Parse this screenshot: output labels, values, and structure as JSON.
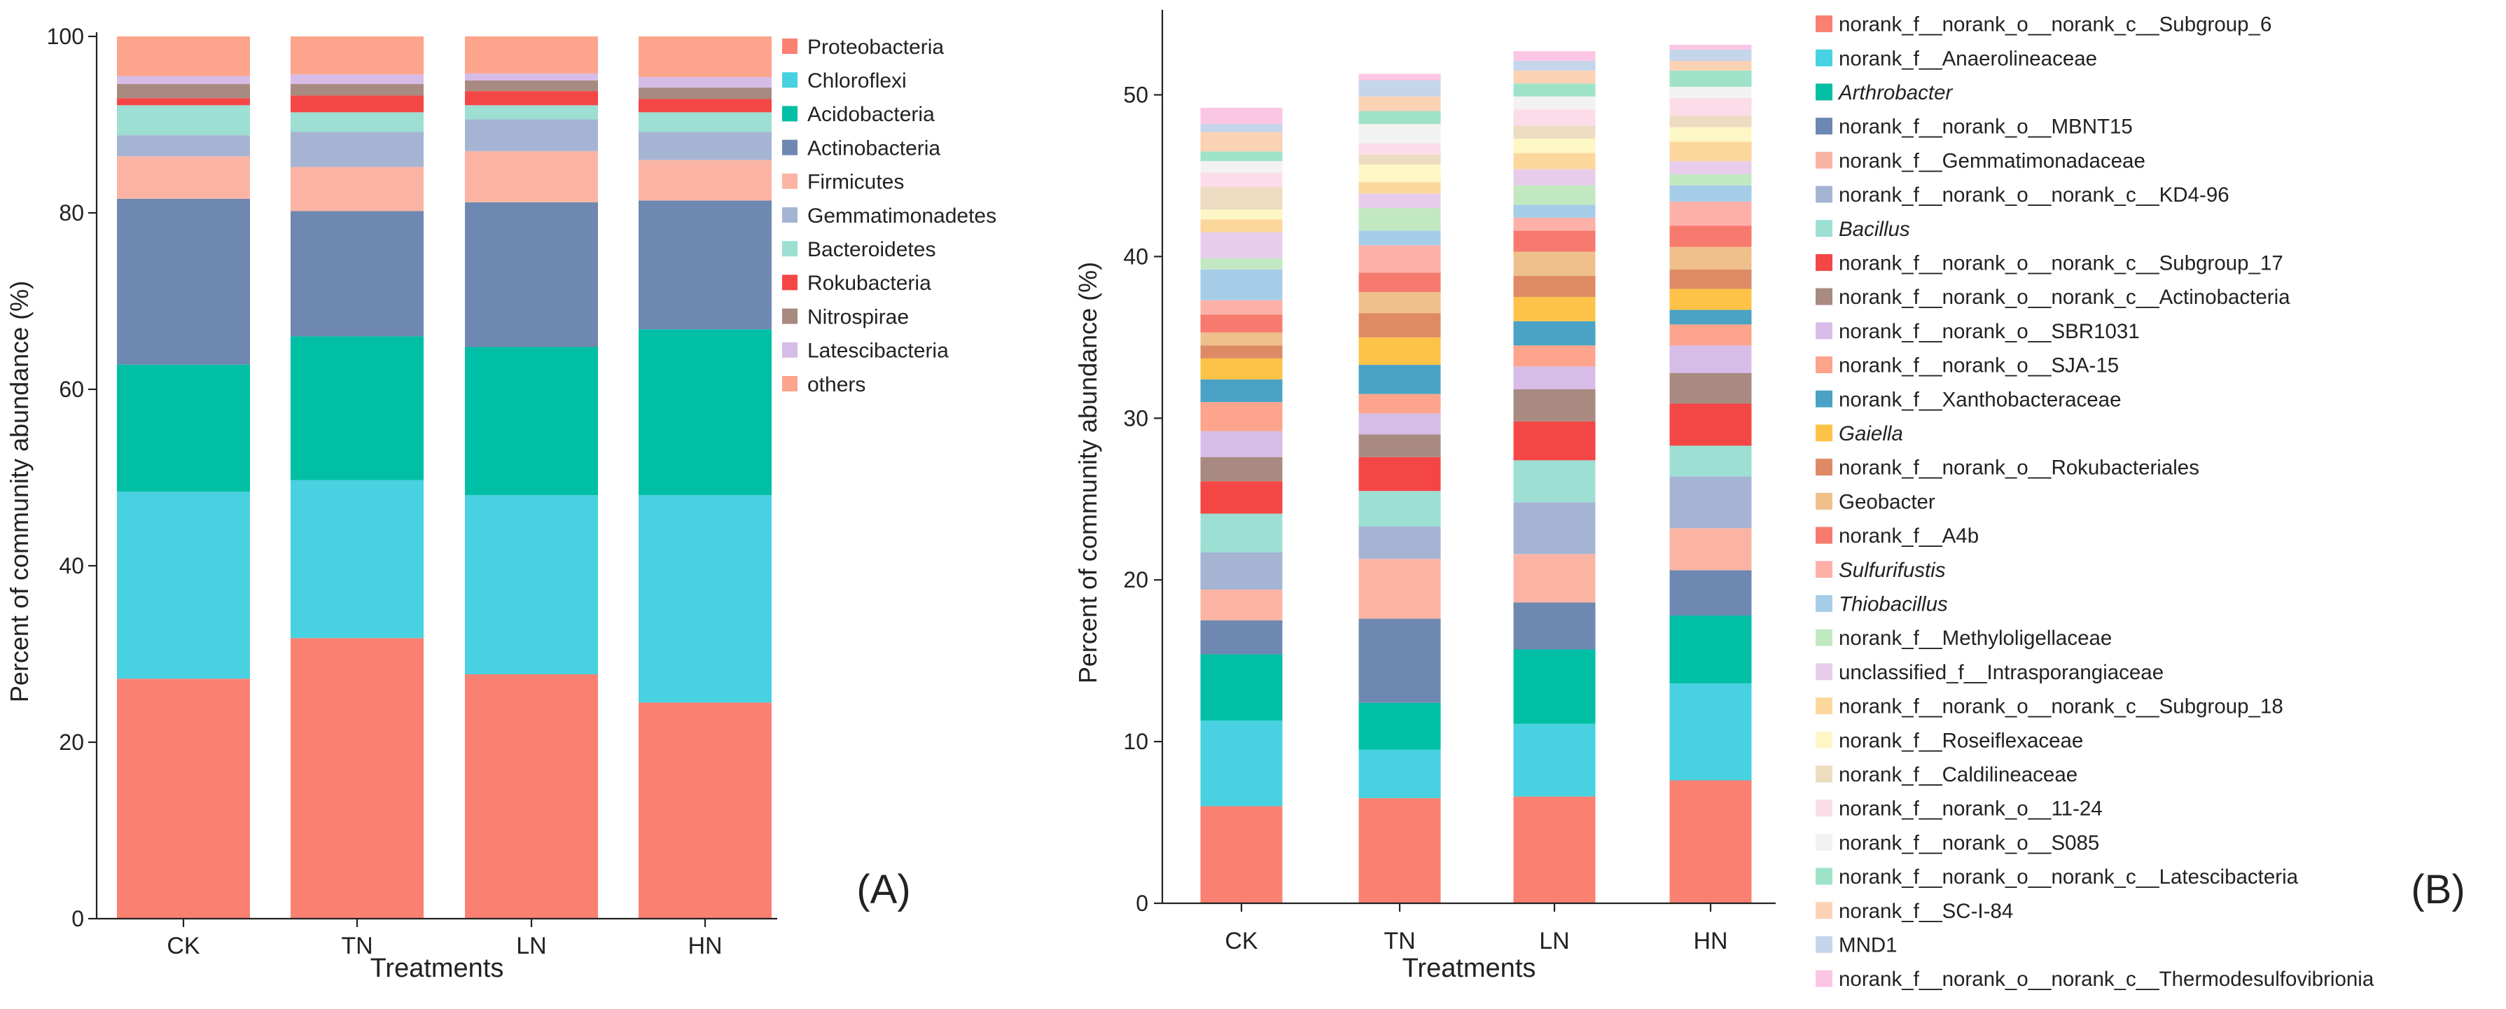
{
  "chart_data": [
    {
      "type": "stacked-bar",
      "panel_label": "(A)",
      "title": "",
      "xlabel": "Treatments",
      "ylabel": "Percent of community abundance (%)",
      "ylim": [
        0,
        100
      ],
      "yticks": [
        0,
        20,
        40,
        60,
        80,
        100
      ],
      "categories": [
        "CK",
        "TN",
        "LN",
        "HN"
      ],
      "series": [
        {
          "name": "Proteobacteria",
          "color": "#FA8072",
          "values": [
            27.2,
            31.8,
            27.7,
            24.5
          ]
        },
        {
          "name": "Chloroflexi",
          "color": "#48D1E0",
          "values": [
            21.2,
            17.9,
            20.3,
            23.5
          ]
        },
        {
          "name": "Acidobacteria",
          "color": "#00BFA5",
          "values": [
            14.4,
            16.3,
            16.8,
            18.8
          ]
        },
        {
          "name": "Actinobacteria",
          "color": "#6E88B2",
          "values": [
            18.8,
            14.2,
            16.4,
            14.6
          ]
        },
        {
          "name": "Firmicutes",
          "color": "#FBB4A4",
          "values": [
            4.8,
            5.0,
            5.8,
            4.6
          ]
        },
        {
          "name": "Gemmatimonadetes",
          "color": "#A6B4D4",
          "values": [
            2.4,
            4.0,
            3.6,
            3.2
          ]
        },
        {
          "name": "Bacteroidetes",
          "color": "#9DDFD3",
          "values": [
            3.4,
            2.2,
            1.6,
            2.2
          ]
        },
        {
          "name": "Rokubacteria",
          "color": "#F54646",
          "values": [
            0.8,
            1.9,
            1.6,
            1.5
          ]
        },
        {
          "name": "Nitrospirae",
          "color": "#A88A80",
          "values": [
            1.6,
            1.3,
            1.2,
            1.3
          ]
        },
        {
          "name": "Latescibacteria",
          "color": "#D7BCE8",
          "values": [
            0.9,
            1.1,
            0.8,
            1.2
          ]
        },
        {
          "name": "others",
          "color": "#FCA48C",
          "values": [
            4.5,
            4.3,
            4.2,
            4.6
          ]
        }
      ]
    },
    {
      "type": "stacked-bar",
      "panel_label": "(B)",
      "title": "",
      "xlabel": "Treatments",
      "ylabel": "Percent of community abundance (%)",
      "ylim": [
        0,
        55
      ],
      "yticks": [
        0,
        10,
        20,
        30,
        40,
        50
      ],
      "categories": [
        "CK",
        "TN",
        "LN",
        "HN"
      ],
      "series": [
        {
          "name": "norank_f__norank_o__norank_c__Subgroup_6",
          "italic": false,
          "color": "#FA8072",
          "values": [
            6.0,
            6.5,
            6.6,
            7.6
          ]
        },
        {
          "name": "norank_f__Anaerolineaceae",
          "italic": false,
          "color": "#48D1E0",
          "values": [
            5.3,
            3.0,
            4.5,
            6.0
          ]
        },
        {
          "name": "Arthrobacter",
          "italic": true,
          "color": "#00BFA5",
          "values": [
            4.1,
            2.9,
            4.6,
            4.2
          ]
        },
        {
          "name": "norank_f__norank_o__MBNT15",
          "italic": false,
          "color": "#6E88B2",
          "values": [
            2.1,
            5.2,
            2.9,
            2.8
          ]
        },
        {
          "name": "norank_f__Gemmatimonadaceae",
          "italic": false,
          "color": "#FBB4A4",
          "values": [
            1.9,
            3.7,
            3.0,
            2.6
          ]
        },
        {
          "name": "norank_f__norank_o__norank_c__KD4-96",
          "italic": false,
          "color": "#A6B4D4",
          "values": [
            2.3,
            2.0,
            3.2,
            3.2
          ]
        },
        {
          "name": "Bacillus",
          "italic": true,
          "color": "#9DDFD3",
          "values": [
            2.4,
            2.2,
            2.6,
            1.9
          ]
        },
        {
          "name": "norank_f__norank_o__norank_c__Subgroup_17",
          "italic": false,
          "color": "#F54646",
          "values": [
            2.0,
            2.1,
            2.4,
            2.6
          ]
        },
        {
          "name": "norank_f__norank_o__norank_c__Actinobacteria",
          "italic": false,
          "color": "#A88A80",
          "values": [
            1.5,
            1.4,
            2.0,
            1.9
          ]
        },
        {
          "name": "norank_f__norank_o__SBR1031",
          "italic": false,
          "color": "#D7BCE8",
          "values": [
            1.6,
            1.3,
            1.4,
            1.7
          ]
        },
        {
          "name": "norank_f__norank_o__SJA-15",
          "italic": false,
          "color": "#FCA48C",
          "values": [
            1.8,
            1.2,
            1.3,
            1.3
          ]
        },
        {
          "name": "norank_f__Xanthobacteraceae",
          "italic": false,
          "color": "#4AA3C4",
          "values": [
            1.4,
            1.8,
            1.5,
            0.9
          ]
        },
        {
          "name": "Gaiella",
          "italic": true,
          "color": "#FDC248",
          "values": [
            1.3,
            1.7,
            1.5,
            1.3
          ]
        },
        {
          "name": "norank_f__norank_o__Rokubacteriales",
          "italic": false,
          "color": "#DE8A64",
          "values": [
            0.8,
            1.5,
            1.3,
            1.2
          ]
        },
        {
          "name": "Geobacter",
          "italic": false,
          "color": "#EFC08C",
          "values": [
            0.8,
            1.3,
            1.5,
            1.4
          ]
        },
        {
          "name": "norank_f__A4b",
          "italic": false,
          "color": "#F77A6E",
          "values": [
            1.1,
            1.2,
            1.3,
            1.3
          ]
        },
        {
          "name": "Sulfurifustis",
          "italic": true,
          "color": "#FDB0A8",
          "values": [
            0.9,
            1.7,
            0.8,
            1.5
          ]
        },
        {
          "name": "Thiobacillus",
          "italic": true,
          "color": "#A6CDE8",
          "values": [
            1.9,
            0.9,
            0.8,
            1.0
          ]
        },
        {
          "name": "norank_f__Methyloligellaceae",
          "italic": false,
          "color": "#C2E8C2",
          "values": [
            0.7,
            1.4,
            1.2,
            0.7
          ]
        },
        {
          "name": "unclassified_f__Intrasporangiaceae",
          "italic": false,
          "color": "#E8CCEC",
          "values": [
            1.6,
            0.9,
            1.0,
            0.8
          ]
        },
        {
          "name": "norank_f__norank_o__norank_c__Subgroup_18",
          "italic": false,
          "color": "#FCD79C",
          "values": [
            0.8,
            0.7,
            1.0,
            1.2
          ]
        },
        {
          "name": "norank_f__Roseiflexaceae",
          "italic": false,
          "color": "#FCF7C4",
          "values": [
            0.6,
            1.1,
            0.9,
            0.9
          ]
        },
        {
          "name": "norank_f__Caldilineaceae",
          "italic": false,
          "color": "#EDDCC2",
          "values": [
            1.4,
            0.6,
            0.8,
            0.7
          ]
        },
        {
          "name": "norank_f__norank_o__11-24",
          "italic": false,
          "color": "#FBDCE8",
          "values": [
            0.9,
            0.7,
            1.0,
            1.1
          ]
        },
        {
          "name": "norank_f__norank_o__S085",
          "italic": false,
          "color": "#F2F2F2",
          "values": [
            0.7,
            1.2,
            0.8,
            0.7
          ]
        },
        {
          "name": "norank_f__norank_o__norank_c__Latescibacteria",
          "italic": false,
          "color": "#9EE3C8",
          "values": [
            0.6,
            0.8,
            0.8,
            1.0
          ]
        },
        {
          "name": "norank_f__SC-I-84",
          "italic": false,
          "color": "#FCD2B4",
          "values": [
            1.2,
            0.9,
            0.8,
            0.6
          ]
        },
        {
          "name": "MND1",
          "italic": false,
          "color": "#C5D5EA",
          "values": [
            0.5,
            1.0,
            0.6,
            0.7
          ]
        },
        {
          "name": "norank_f__norank_o__norank_c__Thermodesulfovibrionia",
          "italic": false,
          "color": "#FBC6E4",
          "values": [
            1.0,
            0.4,
            0.6,
            0.3
          ]
        }
      ]
    }
  ]
}
